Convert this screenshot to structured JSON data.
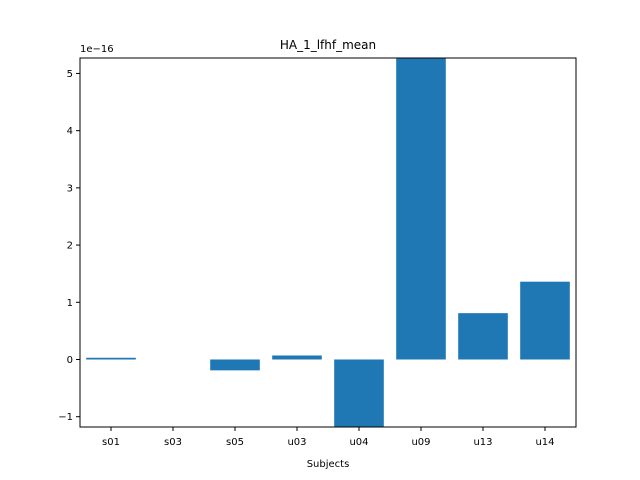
{
  "chart_data": {
    "type": "bar",
    "title": "HA_1_lfhf_mean",
    "xlabel": "Subjects",
    "ylabel": "",
    "y_offset_label": "1e−16",
    "categories": [
      "s01",
      "s03",
      "s05",
      "u03",
      "u04",
      "u09",
      "u13",
      "u14"
    ],
    "values": [
      0.03,
      0.0,
      -0.19,
      0.07,
      -1.2,
      5.27,
      0.81,
      1.36
    ],
    "ylim": [
      -1.18,
      5.27
    ],
    "yticks": [
      -1,
      0,
      1,
      2,
      3,
      4,
      5
    ],
    "ytick_labels": [
      "−1",
      "0",
      "1",
      "2",
      "3",
      "4",
      "5"
    ],
    "bar_color": "#1f77b4",
    "grid": false,
    "legend": "none"
  }
}
